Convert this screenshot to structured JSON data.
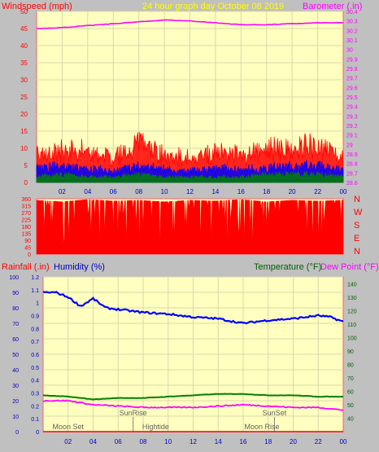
{
  "header": {
    "wind_label": "Windspeed (mph)",
    "title": "24 hour graph day   October 08 2019",
    "baro_label": "Barometer (.in)"
  },
  "direction_letters": [
    "N",
    "W",
    "S",
    "E",
    "N"
  ],
  "lower_header": {
    "rain_label": "Rainfall (.in)",
    "humidity_label": "Humidity (%)",
    "temp_label": "Temperature (°F)",
    "dew_label": "Dew Point (°F)"
  },
  "annotations": [
    {
      "label": "Moon Set",
      "hour": 2.0,
      "row": 2
    },
    {
      "label": "SunRise",
      "hour": 7.2,
      "row": 1
    },
    {
      "label": "Hightide",
      "hour": 9.0,
      "row": 2
    },
    {
      "label": "SunSet",
      "hour": 18.5,
      "row": 1
    },
    {
      "label": "Moon Rise",
      "hour": 17.5,
      "row": 2
    }
  ],
  "colors": {
    "plot_bg": "#ffffc0",
    "page_bg": "#c0c0c0",
    "grid": "#d8d8a8",
    "wind_gust": "#ff0000",
    "wind_avg": "#0000ff",
    "wind_low": "#008000",
    "barometer": "#ff00ff",
    "direction": "#ff0000",
    "humidity": "#0000ff",
    "temperature": "#008000",
    "dewpoint": "#ff00ff",
    "rain": "#ff0000",
    "axis_blue": "#0000c0",
    "axis_green": "#006000"
  },
  "chart_data": [
    {
      "type": "line",
      "title": "24 hour graph day   October 08 2019",
      "x_ticks": [
        "02",
        "04",
        "06",
        "08",
        "10",
        "12",
        "14",
        "16",
        "18",
        "20",
        "22",
        "00"
      ],
      "y_left": {
        "label": "Windspeed (mph)",
        "range": [
          0,
          50
        ],
        "ticks": [
          0,
          5,
          10,
          15,
          20,
          25,
          30,
          35,
          40,
          45,
          50
        ]
      },
      "y_right": {
        "label": "Barometer (.in)",
        "range": [
          28.6,
          30.4
        ],
        "ticks": [
          "28.6",
          "28.7",
          "28.8",
          "28.9",
          "29",
          "29.1",
          "29.2",
          "29.3",
          "29.4",
          "29.5",
          "29.6",
          "29.7",
          "29.8",
          "29.9",
          "30",
          "30.1",
          "30.2",
          "30.3",
          "30.4"
        ]
      },
      "series": [
        {
          "name": "Barometer",
          "axis": "right",
          "x": [
            0,
            2,
            4,
            6,
            8,
            10,
            12,
            14,
            16,
            18,
            20,
            22,
            24
          ],
          "values": [
            30.22,
            30.23,
            30.25,
            30.27,
            30.29,
            30.31,
            30.3,
            30.28,
            30.26,
            30.26,
            30.27,
            30.28,
            30.28
          ]
        },
        {
          "name": "Wind gust",
          "axis": "left",
          "x": [
            0,
            2,
            4,
            6,
            8,
            10,
            12,
            14,
            16,
            18,
            20,
            22,
            24
          ],
          "values": [
            10,
            12,
            12,
            9,
            14,
            10,
            9,
            11,
            10,
            12,
            13,
            14,
            10
          ]
        },
        {
          "name": "Wind average",
          "axis": "left",
          "x": [
            0,
            2,
            4,
            6,
            8,
            10,
            12,
            14,
            16,
            18,
            20,
            22,
            24
          ],
          "values": [
            5,
            6,
            5,
            4,
            6,
            5,
            4,
            5,
            5,
            5,
            6,
            6,
            5
          ]
        },
        {
          "name": "Wind low",
          "axis": "left",
          "x": [
            0,
            2,
            4,
            6,
            8,
            10,
            12,
            14,
            16,
            18,
            20,
            22,
            24
          ],
          "values": [
            2,
            3,
            2,
            2,
            3,
            2,
            2,
            2,
            2,
            3,
            3,
            3,
            2
          ]
        }
      ]
    },
    {
      "type": "bar",
      "x_range": [
        0,
        24
      ],
      "y_left": {
        "range": [
          0,
          360
        ],
        "ticks": [
          0,
          45,
          90,
          135,
          180,
          225,
          270,
          315,
          360
        ]
      },
      "description_axis_right": [
        "N",
        "W",
        "S",
        "E",
        "N"
      ],
      "series": [
        {
          "name": "Wind direction",
          "x": [
            0,
            2,
            4,
            6,
            8,
            10,
            12,
            14,
            16,
            18,
            20,
            22,
            24
          ],
          "values": [
            350,
            340,
            355,
            345,
            350,
            340,
            350,
            345,
            355,
            340,
            350,
            345,
            350
          ]
        }
      ]
    },
    {
      "type": "line",
      "x_ticks": [
        "02",
        "04",
        "06",
        "08",
        "10",
        "12",
        "14",
        "16",
        "18",
        "20",
        "22",
        "00"
      ],
      "y_rain": {
        "label": "Rainfall (.in)",
        "range": [
          0,
          1.2
        ],
        "ticks": [
          "0",
          "0.1",
          "0.2",
          "0.3",
          "0.4",
          "0.5",
          "0.6",
          "0.7",
          "0.8",
          "0.9",
          "1",
          "1.1",
          "1.2"
        ]
      },
      "y_humidity": {
        "label": "Humidity (%)",
        "range": [
          0,
          100
        ],
        "ticks": [
          0,
          10,
          20,
          30,
          40,
          50,
          60,
          70,
          80,
          90,
          100
        ]
      },
      "y_temp": {
        "label": "Temperature (°F)",
        "range": [
          30,
          145
        ],
        "ticks": [
          40,
          50,
          60,
          70,
          80,
          90,
          100,
          110,
          120,
          130,
          140
        ]
      },
      "series": [
        {
          "name": "Humidity",
          "axis": "humidity",
          "x": [
            0,
            1,
            2,
            3,
            4,
            5,
            6,
            7,
            8,
            10,
            12,
            14,
            16,
            18,
            20,
            22,
            23,
            24
          ],
          "values": [
            90,
            90,
            87,
            81,
            86,
            80,
            79,
            78,
            77,
            76,
            74,
            73,
            70,
            72,
            73,
            75,
            74,
            71
          ]
        },
        {
          "name": "Temperature",
          "axis": "temp",
          "x": [
            0,
            2,
            4,
            6,
            8,
            10,
            12,
            14,
            16,
            18,
            20,
            22,
            24
          ],
          "values": [
            57,
            56,
            54,
            55,
            55,
            56,
            57,
            58,
            58,
            57,
            57,
            56,
            56
          ]
        },
        {
          "name": "Dew Point",
          "axis": "temp",
          "x": [
            0,
            2,
            4,
            6,
            8,
            10,
            12,
            14,
            16,
            18,
            20,
            22,
            24
          ],
          "values": [
            53,
            53,
            50,
            49,
            48,
            48,
            48,
            49,
            50,
            49,
            48,
            48,
            46
          ]
        },
        {
          "name": "Rainfall",
          "axis": "rain",
          "x": [
            0,
            24
          ],
          "values": [
            0,
            0
          ]
        }
      ]
    }
  ]
}
